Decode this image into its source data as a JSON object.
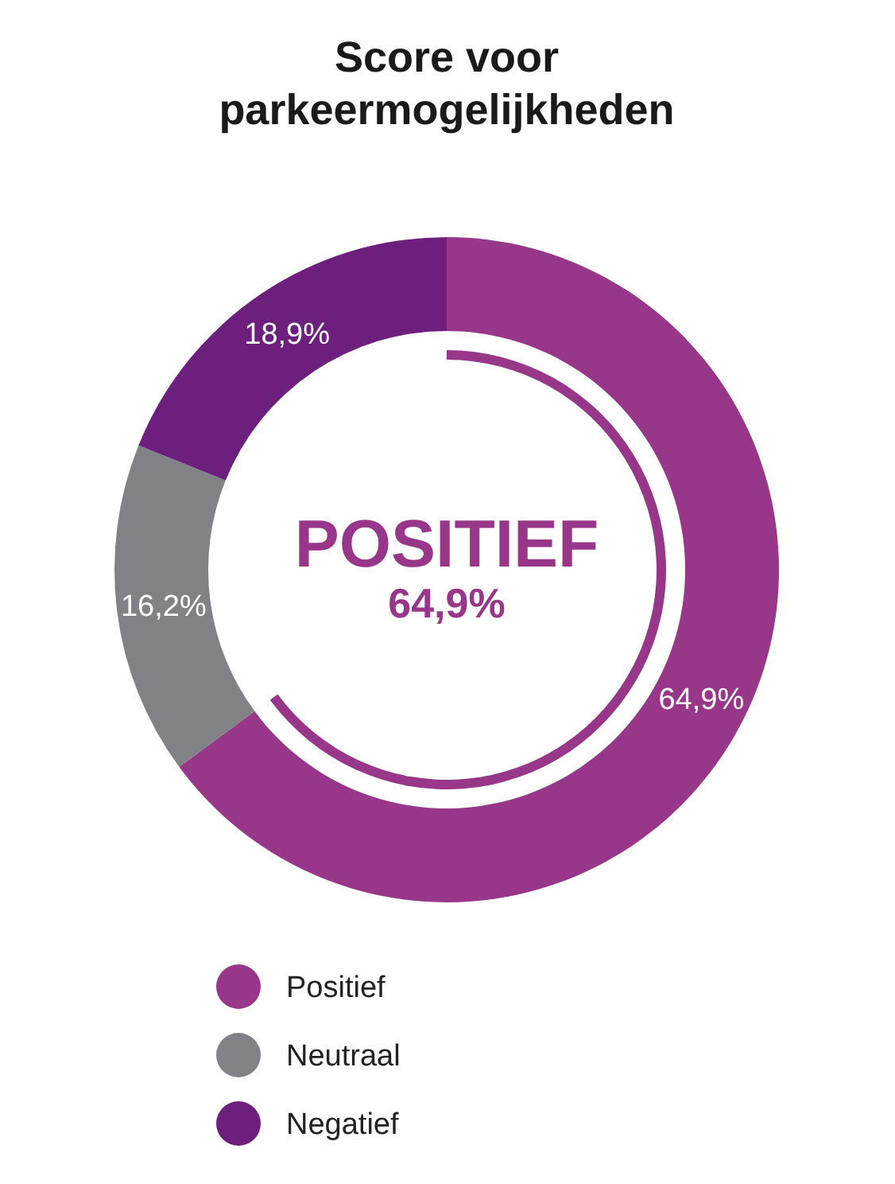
{
  "chart_data": {
    "type": "donut",
    "title": "Score voor parkeermogelijkheden",
    "categories": [
      "Positief",
      "Neutraal",
      "Negatief"
    ],
    "values": [
      64.9,
      16.2,
      18.9
    ],
    "value_labels": [
      "64,9%",
      "16,2%",
      "18,9%"
    ],
    "colors": [
      "#98368a",
      "#808285",
      "#6c1f7c"
    ],
    "annotations": [
      "POSITIEF",
      "64,9%"
    ],
    "legend": "bottom"
  }
}
